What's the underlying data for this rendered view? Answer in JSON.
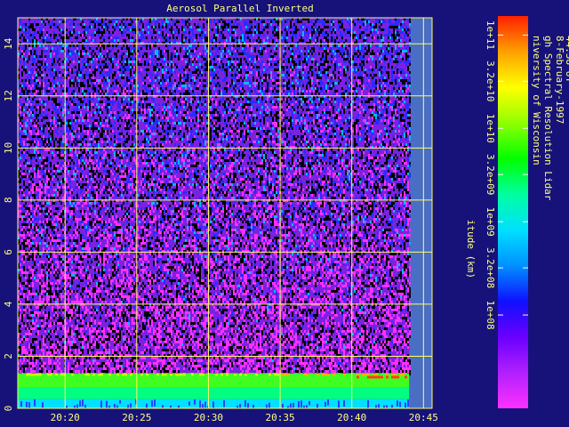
{
  "chart_data": {
    "type": "heatmap",
    "title": "Aerosol Parallel Inverted",
    "ylabel": "itude (km)",
    "y_ticks": [
      0,
      2,
      4,
      6,
      8,
      10,
      12,
      14
    ],
    "ylim": [
      0,
      15
    ],
    "x_ticks": [
      "20:20",
      "20:25",
      "20:30",
      "20:35",
      "20:40",
      "20:45"
    ],
    "x_tick_minutes": [
      20,
      25,
      30,
      35,
      40,
      45
    ],
    "xlim_minutes": [
      16.7,
      45.6
    ],
    "data_end_minutes": 44.0,
    "grid": true,
    "colorbar": {
      "scale": "log",
      "range": [
        10000000.0,
        160000000000.0
      ],
      "tick_labels": [
        "1e+08",
        "3.2e+08",
        "1e+09",
        "3.2e+09",
        "1e+10",
        "3.2e+10",
        "1e+11"
      ],
      "tick_values": [
        100000000.0,
        320000000.0,
        1000000000.0,
        3200000000.0,
        10000000000.0,
        32000000000.0,
        100000000000.0
      ],
      "colors": [
        "#ff30ff",
        "#b020ff",
        "#6a00ff",
        "#1010ff",
        "#0090ff",
        "#00e0ff",
        "#00ffa0",
        "#00ff00",
        "#90ff00",
        "#ffff00",
        "#ffa000",
        "#ff2000"
      ]
    },
    "annotation_lines": [
      "niversity of Wisconsin",
      "gh Spectral Resolution Lidar",
      "8-February-1997",
      "44:58 UT"
    ],
    "layers": [
      {
        "name": "surface",
        "bottom_km": 0.0,
        "top_km": 0.35,
        "color": "#00e0ff"
      },
      {
        "name": "boundary-layer-lower",
        "bottom_km": 0.35,
        "top_km": 0.8,
        "color": "#00ff80"
      },
      {
        "name": "boundary-layer-upper",
        "bottom_km": 0.8,
        "top_km": 1.35,
        "color": "#40ff20"
      }
    ],
    "colors": {
      "background": "#16127a",
      "grid": "#ffff60",
      "text": "#ffff80",
      "no_data": "#4a6ec4"
    }
  }
}
